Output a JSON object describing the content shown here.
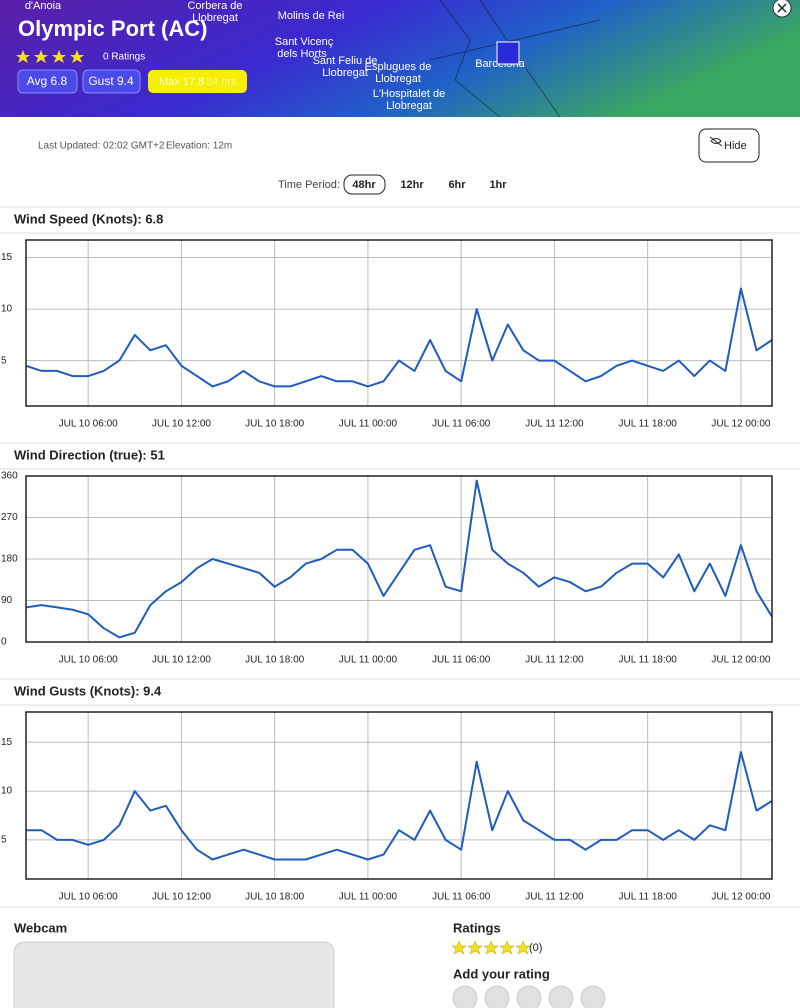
{
  "header": {
    "title": "Olympic Port (AC)",
    "ratings": "0 Ratings",
    "avg": "Avg 6.8",
    "gust": "Gust 9.4",
    "max": "Max 17.8",
    "max_period": "24 hrs",
    "map_labels": [
      "d'Anoia",
      "Corbera de",
      "Llobregat",
      "Molins de Rei",
      "Sant Vicenç",
      "dels Horts",
      "Sant Feliu de",
      "Llobregat",
      "Esplugues de",
      "Llobregat",
      "L'Hospitalet de",
      "Llobregat",
      "Barcelona"
    ]
  },
  "info": {
    "last_updated": "Last Updated: 02:02 GMT+2",
    "elevation": "Elevation: 12m",
    "hide": "Hide"
  },
  "time_period": {
    "label": "Time Period:",
    "options": [
      "48hr",
      "12hr",
      "6hr",
      "1hr"
    ]
  },
  "chart_data": [
    {
      "type": "line",
      "title": "Wind Speed (Knots): 6.8",
      "color": "#1f5cbd",
      "grid": true,
      "categories": [
        null,
        null,
        null,
        null,
        "JUL 10 06:00",
        null,
        null,
        null,
        null,
        null,
        "JUL 10 12:00",
        null,
        null,
        null,
        null,
        null,
        "JUL 10 18:00",
        null,
        null,
        null,
        null,
        null,
        "JUL 11 00:00",
        null,
        null,
        null,
        null,
        null,
        "JUL 11 06:00",
        null,
        null,
        null,
        null,
        null,
        "JUL 11 12:00",
        null,
        null,
        null,
        null,
        null,
        "JUL 11 18:00",
        null,
        null,
        null,
        null,
        null,
        "JUL 12 00:00",
        null,
        null
      ],
      "values": [
        4.5,
        4,
        4,
        3.5,
        3.5,
        4,
        5,
        7.5,
        6,
        6.5,
        4.5,
        3.5,
        2.5,
        3,
        4,
        3,
        2.5,
        2.5,
        3,
        3.5,
        3,
        3,
        2.5,
        3,
        5,
        4,
        7,
        4,
        3,
        10,
        5,
        8.5,
        6,
        5,
        5,
        4,
        3,
        3.5,
        4.5,
        5,
        4.5,
        4,
        5,
        3.5,
        5,
        4,
        12,
        6,
        7
      ],
      "ylim": [
        0.6,
        16.7
      ],
      "yticks": [
        5,
        10,
        15
      ]
    },
    {
      "type": "line",
      "title": "Wind Direction (true): 51",
      "color": "#1f5cbd",
      "grid": true,
      "categories": [
        null,
        null,
        null,
        null,
        "JUL 10 06:00",
        null,
        null,
        null,
        null,
        null,
        "JUL 10 12:00",
        null,
        null,
        null,
        null,
        null,
        "JUL 10 18:00",
        null,
        null,
        null,
        null,
        null,
        "JUL 11 00:00",
        null,
        null,
        null,
        null,
        null,
        "JUL 11 06:00",
        null,
        null,
        null,
        null,
        null,
        "JUL 11 12:00",
        null,
        null,
        null,
        null,
        null,
        "JUL 11 18:00",
        null,
        null,
        null,
        null,
        null,
        "JUL 12 00:00",
        null,
        null
      ],
      "values": [
        75,
        80,
        75,
        70,
        60,
        30,
        10,
        20,
        80,
        110,
        130,
        160,
        180,
        170,
        160,
        150,
        120,
        140,
        170,
        180,
        200,
        200,
        170,
        100,
        150,
        200,
        210,
        120,
        110,
        350,
        200,
        170,
        150,
        120,
        140,
        130,
        110,
        120,
        150,
        170,
        170,
        140,
        190,
        110,
        170,
        100,
        210,
        110,
        55
      ],
      "ylim": [
        0,
        360
      ],
      "yticks": [
        0,
        90,
        180,
        270,
        360
      ]
    },
    {
      "type": "line",
      "title": "Wind Gusts (Knots): 9.4",
      "color": "#1f5cbd",
      "grid": true,
      "categories": [
        null,
        null,
        null,
        null,
        "JUL 10 06:00",
        null,
        null,
        null,
        null,
        null,
        "JUL 10 12:00",
        null,
        null,
        null,
        null,
        null,
        "JUL 10 18:00",
        null,
        null,
        null,
        null,
        null,
        "JUL 11 00:00",
        null,
        null,
        null,
        null,
        null,
        "JUL 11 06:00",
        null,
        null,
        null,
        null,
        null,
        "JUL 11 12:00",
        null,
        null,
        null,
        null,
        null,
        "JUL 11 18:00",
        null,
        null,
        null,
        null,
        null,
        "JUL 12 00:00",
        null,
        null
      ],
      "values": [
        6,
        6,
        5,
        5,
        4.5,
        5,
        6.5,
        10,
        8,
        8.5,
        6,
        4,
        3,
        3.5,
        4,
        3.5,
        3,
        3,
        3,
        3.5,
        4,
        3.5,
        3,
        3.5,
        6,
        5,
        8,
        5,
        4,
        13,
        6,
        10,
        7,
        6,
        5,
        5,
        4,
        5,
        5,
        6,
        6,
        5,
        6,
        5,
        6.5,
        6,
        14,
        8,
        9
      ],
      "ylim": [
        1,
        18.1
      ],
      "yticks": [
        5,
        10,
        15
      ]
    }
  ],
  "webcam": {
    "title": "Webcam"
  },
  "ratings": {
    "title": "Ratings",
    "count": "(0)",
    "add": "Add your rating"
  }
}
